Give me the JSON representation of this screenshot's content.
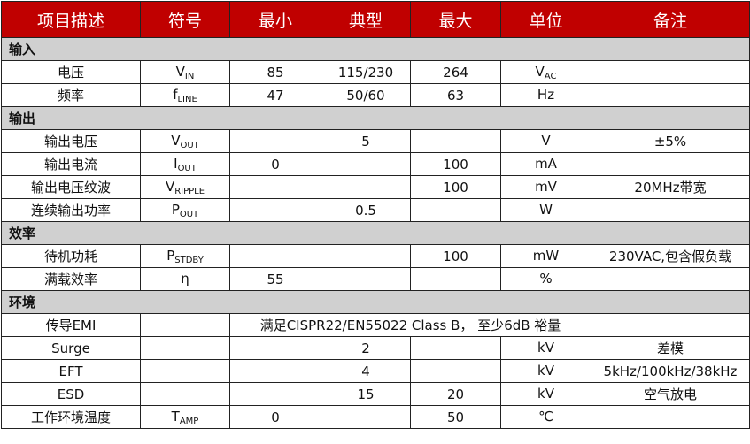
{
  "headers": [
    "项目描述",
    "符号",
    "最小",
    "典型",
    "最大",
    "单位",
    "备注"
  ],
  "sections": [
    {
      "title": "输入",
      "rows": [
        {
          "desc": "电压",
          "sym": "V",
          "sub": "IN",
          "min": "85",
          "typ": "115/230",
          "max": "264",
          "unit": "V",
          "unit_sub": "AC",
          "note": ""
        },
        {
          "desc": "频率",
          "sym": "f",
          "sub": "LINE",
          "min": "47",
          "typ": "50/60",
          "max": "63",
          "unit": "Hz",
          "unit_sub": "",
          "note": ""
        }
      ]
    },
    {
      "title": "输出",
      "rows": [
        {
          "desc": "输出电压",
          "sym": "V",
          "sub": "OUT",
          "min": "",
          "typ": "5",
          "max": "",
          "unit": "V",
          "unit_sub": "",
          "note": "±5%"
        },
        {
          "desc": "输出电流",
          "sym": "I",
          "sub": "OUT",
          "min": "0",
          "typ": "",
          "max": "100",
          "unit": "mA",
          "unit_sub": "",
          "note": ""
        },
        {
          "desc": "输出电压纹波",
          "sym": "V",
          "sub": "RIPPLE",
          "min": "",
          "typ": "",
          "max": "100",
          "unit": "mV",
          "unit_sub": "",
          "note": "20MHz带宽"
        },
        {
          "desc": "连续输出功率",
          "sym": "P",
          "sub": "OUT",
          "min": "",
          "typ": "0.5",
          "max": "",
          "unit": "W",
          "unit_sub": "",
          "note": ""
        }
      ]
    },
    {
      "title": "效率",
      "rows": [
        {
          "desc": "待机功耗",
          "sym": "P",
          "sub": "STDBY",
          "min": "",
          "typ": "",
          "max": "100",
          "unit": "mW",
          "unit_sub": "",
          "note": "230VAC,包含假负载"
        },
        {
          "desc": "满载效率",
          "sym": "η",
          "sub": "",
          "min": "55",
          "typ": "",
          "max": "",
          "unit": "%",
          "unit_sub": "",
          "note": ""
        }
      ]
    },
    {
      "title": "环境",
      "rows": [
        {
          "desc": "传导EMI",
          "sym": "",
          "sub": "",
          "merged": "满足CISPR22/EN55022 Class B， 至少6dB 裕量",
          "note": ""
        },
        {
          "desc": "Surge",
          "sym": "",
          "sub": "",
          "min": "",
          "typ": "2",
          "max": "",
          "unit": "kV",
          "unit_sub": "",
          "note": "差模"
        },
        {
          "desc": "EFT",
          "sym": "",
          "sub": "",
          "min": "",
          "typ": "4",
          "max": "",
          "unit": "kV",
          "unit_sub": "",
          "note": "5kHz/100kHz/38kHz"
        },
        {
          "desc": "ESD",
          "sym": "",
          "sub": "",
          "min": "",
          "typ": "15",
          "max": "20",
          "unit": "kV",
          "unit_sub": "",
          "note": "空气放电"
        },
        {
          "desc": "工作环境温度",
          "sym": "T",
          "sub": "AMP",
          "min": "0",
          "typ": "",
          "max": "50",
          "unit": "℃",
          "unit_sub": "",
          "note": ""
        }
      ]
    }
  ]
}
